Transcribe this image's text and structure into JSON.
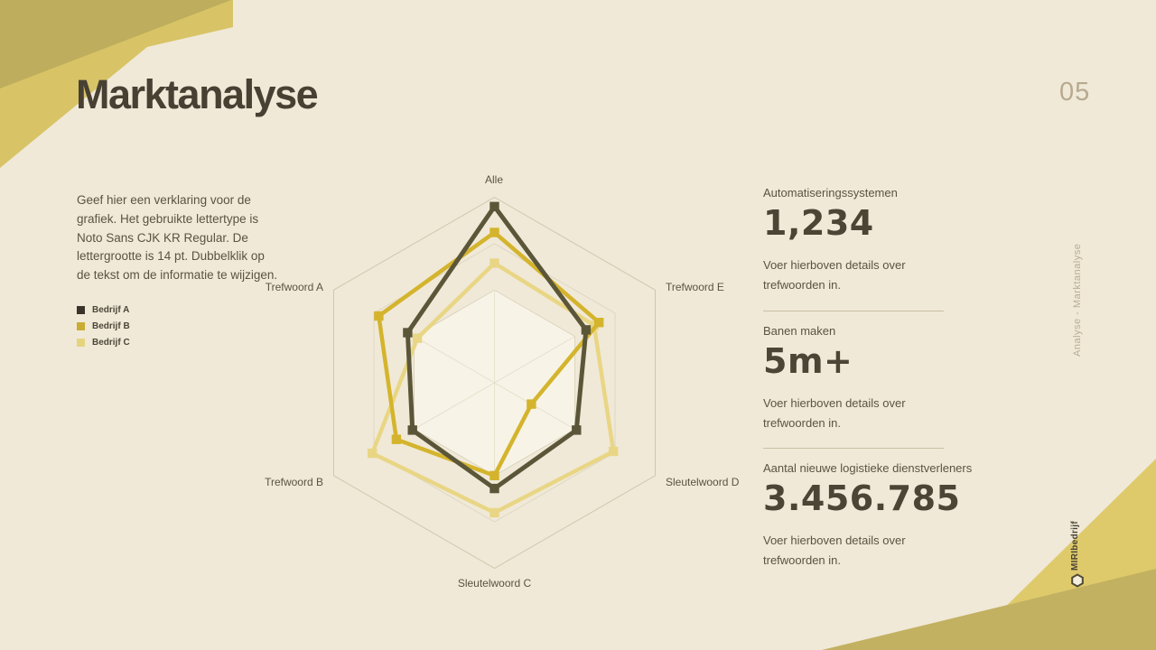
{
  "slide": {
    "title": "Marktanalyse",
    "page_number": "05",
    "side_label": "Analyse - Marktanalyse",
    "brand": "MIRIbedrijf"
  },
  "colors": {
    "background": "#f0e9d8",
    "accent_gold_bright": "#d8c466",
    "accent_gold_muted": "#bead5c",
    "text_dark": "#474033",
    "text_body": "#5b5342",
    "text_faint": "#b7aa8f"
  },
  "description": {
    "lines": [
      "Geef hier een verklaring voor de",
      "grafiek. Het gebruikte lettertype is",
      "Noto Sans CJK KR Regular. De",
      "lettergrootte is 14 pt. Dubbelklik op",
      "de tekst om de informatie te wijzigen."
    ]
  },
  "legend": {
    "items": [
      {
        "label": "Bedrijf A",
        "color": "#3a342b"
      },
      {
        "label": "Bedrijf B",
        "color": "#c9ad33"
      },
      {
        "label": "Bedrijf C",
        "color": "#e5d47e"
      }
    ]
  },
  "chart_data": {
    "type": "radar",
    "title": "",
    "categories": [
      "Alle",
      "Trefwoord E",
      "Sleutelwoord D",
      "Sleutelwoord C",
      "Trefwoord B",
      "Trefwoord A"
    ],
    "series": [
      {
        "name": "Bedrijf A",
        "color": "#5c5639",
        "line_width": 5,
        "values": [
          0.95,
          0.57,
          0.51,
          0.57,
          0.51,
          0.54
        ]
      },
      {
        "name": "Bedrijf B",
        "color": "#d4b42c",
        "line_width": 4.5,
        "values": [
          0.81,
          0.65,
          0.23,
          0.5,
          0.61,
          0.72
        ]
      },
      {
        "name": "Bedrijf C",
        "color": "#e9d685",
        "line_width": 4.5,
        "values": [
          0.645,
          0.62,
          0.74,
          0.7,
          0.76,
          0.48
        ]
      }
    ],
    "scale": {
      "min": 0,
      "max": 1,
      "grid_rings": [
        0.5,
        0.75,
        1.0
      ]
    },
    "legend_position": "left",
    "grid": "hexagonal"
  },
  "stats": [
    {
      "label": "Automatiseringssystemen",
      "value": "1,234",
      "description_lines": [
        "Voer hierboven details over",
        "trefwoorden in."
      ]
    },
    {
      "label": "Banen maken",
      "value": "5m+",
      "description_lines": [
        "Voer hierboven details over",
        "trefwoorden in."
      ]
    },
    {
      "label": "Aantal nieuwe logistieke dienstverleners",
      "value": "3.456.785",
      "description_lines": [
        "Voer hierboven details over",
        "trefwoorden in."
      ]
    }
  ]
}
